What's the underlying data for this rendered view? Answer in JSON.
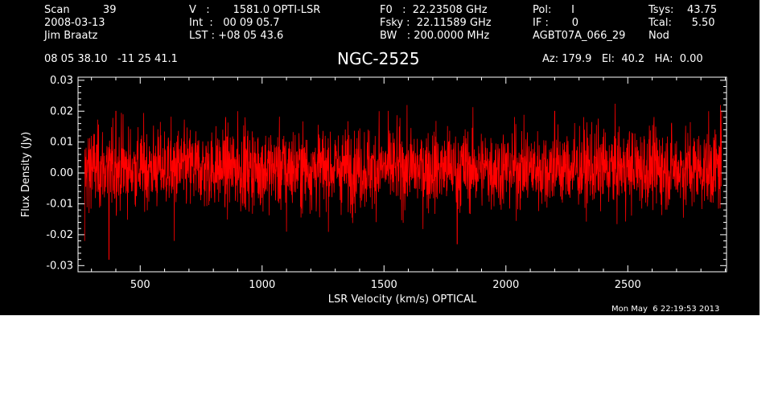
{
  "header": {
    "col1": [
      "Scan          39",
      "2008-03-13",
      "Jim Braatz"
    ],
    "col2": [
      "V   :       1581.0 OPTI-LSR",
      "Int  :   00 09 05.7",
      "LST : +08 05 43.6"
    ],
    "col3": [
      "F0   :  22.23508 GHz",
      "Fsky :  22.11589 GHz",
      "BW   : 200.0000 MHz"
    ],
    "col4": [
      "Pol:      I",
      "IF :       0",
      "AGBT07A_066_29"
    ],
    "col5": [
      "Tsys:    43.75",
      "Tcal:      5.50",
      "Nod"
    ],
    "coords": "08 05 38.10   -11 25 41.1",
    "source": "NGC-2525",
    "pointing": "Az: 179.9   El:  40.2   HA:  0.00",
    "timestamp": "Mon May  6 22:19:53 2013"
  },
  "chart_data": {
    "type": "line",
    "title": "NGC-2525",
    "xlabel": "LSR Velocity (km/s) OPTICAL",
    "ylabel": "Flux Density (Jy)",
    "xlim": [
      245,
      2905
    ],
    "ylim": [
      -0.032,
      0.031
    ],
    "xticks": [
      500,
      1000,
      1500,
      2000,
      2500
    ],
    "xtick_labels": [
      "500",
      "1000",
      "1500",
      "2000",
      "2500"
    ],
    "yticks": [
      -0.03,
      -0.02,
      -0.01,
      0.0,
      0.01,
      0.02,
      0.03
    ],
    "ytick_labels": [
      "-0.03",
      "-0.02",
      "-0.01",
      "0.00",
      "0.01",
      "0.02",
      "0.03"
    ],
    "line_color": "#ff0000",
    "series": [
      {
        "x_start": 272,
        "x_end": 2885,
        "noise_rms": 0.0065,
        "mean": 0.0015,
        "x": [
          272,
          290,
          300,
          372,
          400,
          430,
          640,
          900,
          930,
          1100,
          1480,
          1800,
          2200,
          2880,
          2885
        ],
        "y": [
          -0.022,
          -0.013,
          0.012,
          -0.028,
          0.02,
          0.019,
          -0.022,
          0.02,
          0.018,
          -0.019,
          0.02,
          -0.023,
          0.02,
          0.022,
          0.02
        ]
      }
    ]
  }
}
